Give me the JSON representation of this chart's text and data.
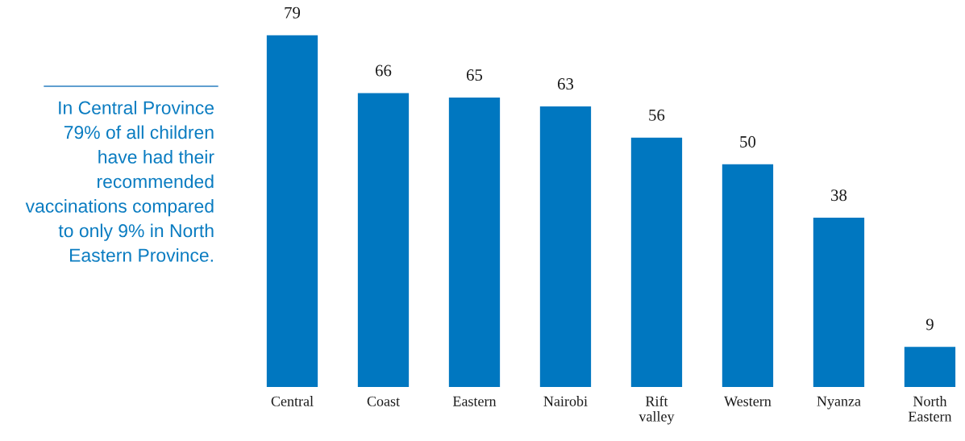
{
  "chart_data": {
    "type": "bar",
    "categories": [
      "Central",
      "Coast",
      "Eastern",
      "Nairobi",
      "Rift\nvalley",
      "Western",
      "Nyanza",
      "North\nEastern"
    ],
    "values": [
      79,
      66,
      65,
      63,
      56,
      50,
      38,
      9
    ],
    "color": "#0077c0",
    "data_labels": true,
    "annotations": [
      "In Central Province\n79% of all children\nhave had their\nrecommended\nvaccinations compared\nto only 9% in North\nEastern Province."
    ]
  }
}
